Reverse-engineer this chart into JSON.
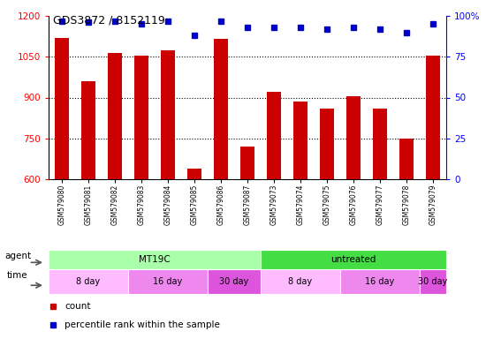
{
  "title": "GDS3872 / 8152119",
  "samples": [
    "GSM579080",
    "GSM579081",
    "GSM579082",
    "GSM579083",
    "GSM579084",
    "GSM579085",
    "GSM579086",
    "GSM579087",
    "GSM579073",
    "GSM579074",
    "GSM579075",
    "GSM579076",
    "GSM579077",
    "GSM579078",
    "GSM579079"
  ],
  "counts": [
    1120,
    960,
    1065,
    1055,
    1075,
    640,
    1115,
    720,
    920,
    885,
    860,
    905,
    860,
    750,
    1055
  ],
  "percentiles": [
    97,
    96,
    97,
    95,
    97,
    88,
    97,
    93,
    93,
    93,
    92,
    93,
    92,
    90,
    95
  ],
  "ylim_left": [
    600,
    1200
  ],
  "ylim_right": [
    0,
    100
  ],
  "yticks_left": [
    600,
    750,
    900,
    1050,
    1200
  ],
  "yticks_right": [
    0,
    25,
    50,
    75,
    100
  ],
  "bar_color": "#cc0000",
  "dot_color": "#0000cc",
  "bg_color": "#ffffff",
  "agent_groups": [
    {
      "label": "MT19C",
      "start": 0,
      "end": 8,
      "color": "#aaffaa"
    },
    {
      "label": "untreated",
      "start": 8,
      "end": 15,
      "color": "#44dd44"
    }
  ],
  "time_groups": [
    {
      "label": "8 day",
      "start": 0,
      "end": 3,
      "color": "#ffbbff"
    },
    {
      "label": "16 day",
      "start": 3,
      "end": 6,
      "color": "#ee88ee"
    },
    {
      "label": "30 day",
      "start": 6,
      "end": 8,
      "color": "#dd55dd"
    },
    {
      "label": "8 day",
      "start": 8,
      "end": 11,
      "color": "#ffbbff"
    },
    {
      "label": "16 day",
      "start": 11,
      "end": 14,
      "color": "#ee88ee"
    },
    {
      "label": "30 day",
      "start": 14,
      "end": 15,
      "color": "#dd55dd"
    }
  ]
}
